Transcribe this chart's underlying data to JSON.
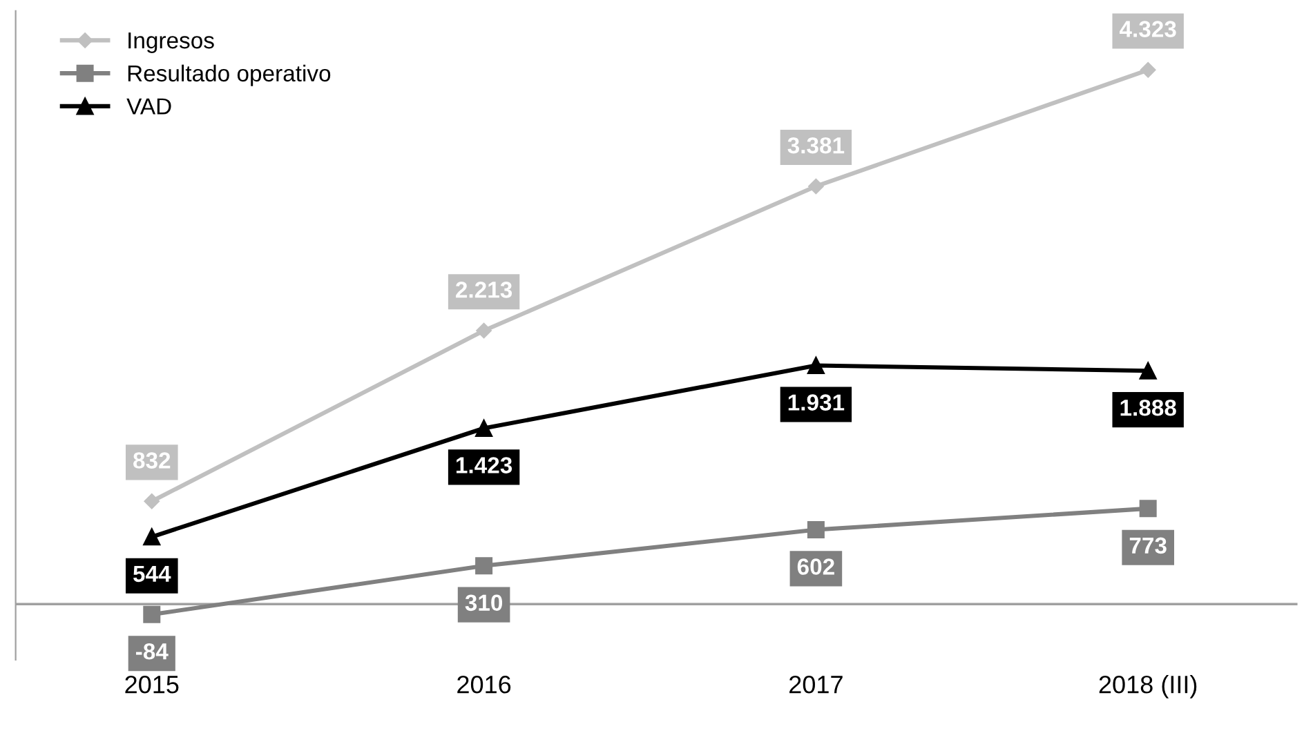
{
  "chart_data": {
    "type": "line",
    "categories": [
      "2015",
      "2016",
      "2017",
      "2018 (III)"
    ],
    "series": [
      {
        "name": "Ingresos",
        "color": "#c0c0c0",
        "marker": "diamond",
        "values": [
          832,
          2213,
          3381,
          4323
        ],
        "value_labels": [
          "832",
          "2.213",
          "3.381",
          "4.323"
        ]
      },
      {
        "name": "Resultado operativo",
        "color": "#808080",
        "marker": "square",
        "values": [
          -84,
          310,
          602,
          773
        ],
        "value_labels": [
          "-84",
          "310",
          "602",
          "773"
        ]
      },
      {
        "name": "VAD",
        "color": "#000000",
        "marker": "triangle",
        "values": [
          544,
          1423,
          1931,
          1888
        ],
        "value_labels": [
          "544",
          "1.423",
          "1.931",
          "1.888"
        ]
      }
    ],
    "ylim": [
      -450,
      4800
    ],
    "ref_lines": [
      {
        "axis": "y",
        "value": 0,
        "color": "#a0a0a0"
      }
    ],
    "tick_labels": "x",
    "grid": false,
    "legend": "top left",
    "line_style": "solid"
  }
}
